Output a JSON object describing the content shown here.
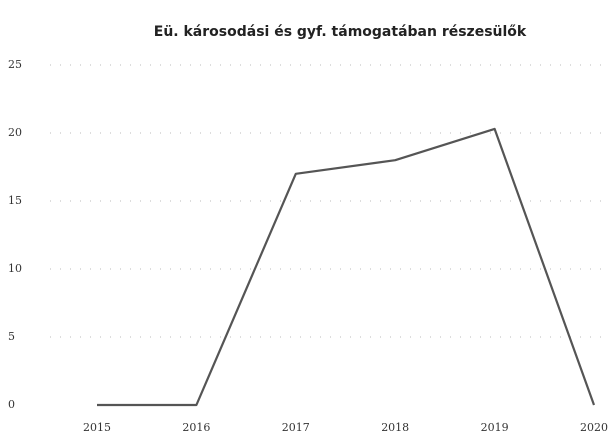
{
  "chart_data": {
    "type": "line",
    "title": "Eü. károsodási és gyf. támogatában részesülők",
    "categories": [
      "2015",
      "2016",
      "2017",
      "2018",
      "2019",
      "2020"
    ],
    "series": [
      {
        "name": "Eü. károsodási és gyf. támogatában részesülők",
        "color": "#555555",
        "values": [
          0,
          0,
          17,
          18,
          20.3,
          0
        ]
      }
    ],
    "ylim": [
      0,
      25
    ],
    "yticks": [
      0,
      5,
      10,
      15,
      20,
      25
    ],
    "grid": true
  }
}
